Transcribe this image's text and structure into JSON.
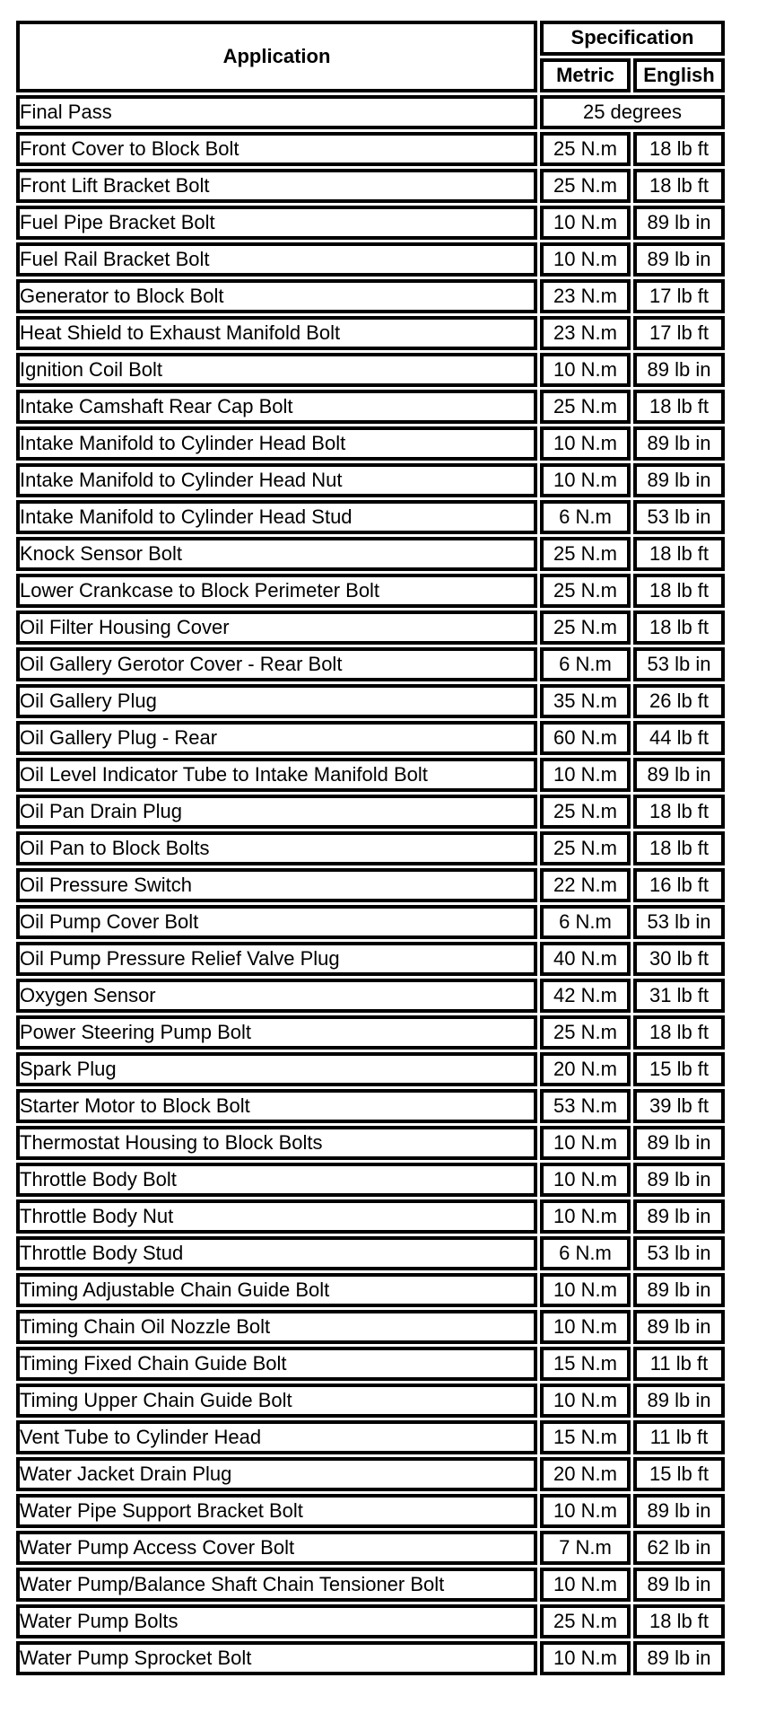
{
  "table": {
    "header": {
      "application": "Application",
      "specification": "Specification",
      "metric": "Metric",
      "english": "English"
    },
    "final_pass": {
      "application": "Final Pass",
      "spec": "25 degrees"
    },
    "rows": [
      {
        "application": "Front Cover to Block Bolt",
        "metric": "25 N.m",
        "english": "18 lb ft"
      },
      {
        "application": "Front Lift Bracket Bolt",
        "metric": "25 N.m",
        "english": "18 lb ft"
      },
      {
        "application": "Fuel Pipe Bracket Bolt",
        "metric": "10 N.m",
        "english": "89 lb in"
      },
      {
        "application": "Fuel Rail Bracket Bolt",
        "metric": "10 N.m",
        "english": "89 lb in"
      },
      {
        "application": "Generator to Block Bolt",
        "metric": "23 N.m",
        "english": "17 lb ft"
      },
      {
        "application": "Heat Shield to Exhaust Manifold Bolt",
        "metric": "23 N.m",
        "english": "17 lb ft"
      },
      {
        "application": "Ignition Coil Bolt",
        "metric": "10 N.m",
        "english": "89 lb in"
      },
      {
        "application": "Intake Camshaft Rear Cap Bolt",
        "metric": "25 N.m",
        "english": "18 lb ft"
      },
      {
        "application": "Intake Manifold to Cylinder Head Bolt",
        "metric": "10 N.m",
        "english": "89 lb in"
      },
      {
        "application": "Intake Manifold to Cylinder Head Nut",
        "metric": "10 N.m",
        "english": "89 lb in"
      },
      {
        "application": "Intake Manifold to Cylinder Head Stud",
        "metric": "6 N.m",
        "english": "53 lb in"
      },
      {
        "application": "Knock Sensor Bolt",
        "metric": "25 N.m",
        "english": "18 lb ft"
      },
      {
        "application": "Lower Crankcase to Block Perimeter Bolt",
        "metric": "25 N.m",
        "english": "18 lb ft"
      },
      {
        "application": "Oil Filter Housing Cover",
        "metric": "25 N.m",
        "english": "18 lb ft"
      },
      {
        "application": "Oil Gallery Gerotor Cover - Rear Bolt",
        "metric": "6 N.m",
        "english": "53 lb in"
      },
      {
        "application": "Oil Gallery Plug",
        "metric": "35 N.m",
        "english": "26 lb ft"
      },
      {
        "application": "Oil Gallery Plug - Rear",
        "metric": "60 N.m",
        "english": "44 lb ft"
      },
      {
        "application": "Oil Level Indicator Tube to Intake Manifold Bolt",
        "metric": "10 N.m",
        "english": "89 lb in"
      },
      {
        "application": "Oil Pan Drain Plug",
        "metric": "25 N.m",
        "english": "18 lb ft"
      },
      {
        "application": "Oil Pan to Block Bolts",
        "metric": "25 N.m",
        "english": "18 lb ft"
      },
      {
        "application": "Oil Pressure Switch",
        "metric": "22 N.m",
        "english": "16 lb ft"
      },
      {
        "application": "Oil Pump Cover Bolt",
        "metric": "6 N.m",
        "english": "53 lb in"
      },
      {
        "application": "Oil Pump Pressure Relief Valve Plug",
        "metric": "40 N.m",
        "english": "30 lb ft"
      },
      {
        "application": "Oxygen Sensor",
        "metric": "42 N.m",
        "english": "31 lb ft"
      },
      {
        "application": "Power Steering Pump Bolt",
        "metric": "25 N.m",
        "english": "18 lb ft"
      },
      {
        "application": "Spark Plug",
        "metric": "20 N.m",
        "english": "15 lb ft"
      },
      {
        "application": "Starter Motor to Block Bolt",
        "metric": "53 N.m",
        "english": "39 lb ft"
      },
      {
        "application": "Thermostat Housing to Block Bolts",
        "metric": "10 N.m",
        "english": "89 lb in"
      },
      {
        "application": "Throttle Body Bolt",
        "metric": "10 N.m",
        "english": "89 lb in"
      },
      {
        "application": "Throttle Body Nut",
        "metric": "10 N.m",
        "english": "89 lb in"
      },
      {
        "application": "Throttle Body Stud",
        "metric": "6 N.m",
        "english": "53 lb in"
      },
      {
        "application": "Timing Adjustable Chain Guide Bolt",
        "metric": "10 N.m",
        "english": "89 lb in"
      },
      {
        "application": "Timing Chain Oil Nozzle Bolt",
        "metric": "10 N.m",
        "english": "89 lb in"
      },
      {
        "application": "Timing Fixed Chain Guide Bolt",
        "metric": "15 N.m",
        "english": "11 lb ft"
      },
      {
        "application": "Timing Upper Chain Guide Bolt",
        "metric": "10 N.m",
        "english": "89 lb in"
      },
      {
        "application": "Vent Tube to Cylinder Head",
        "metric": "15 N.m",
        "english": "11 lb ft"
      },
      {
        "application": "Water Jacket Drain Plug",
        "metric": "20 N.m",
        "english": "15 lb ft"
      },
      {
        "application": "Water Pipe Support Bracket Bolt",
        "metric": "10 N.m",
        "english": "89 lb in"
      },
      {
        "application": "Water Pump Access Cover Bolt",
        "metric": "7 N.m",
        "english": "62 lb in"
      },
      {
        "application": "Water Pump/Balance Shaft Chain Tensioner Bolt",
        "metric": "10 N.m",
        "english": "89 lb in"
      },
      {
        "application": "Water Pump Bolts",
        "metric": "25 N.m",
        "english": "18 lb ft"
      },
      {
        "application": "Water Pump Sprocket Bolt",
        "metric": "10 N.m",
        "english": "89 lb in"
      }
    ]
  }
}
